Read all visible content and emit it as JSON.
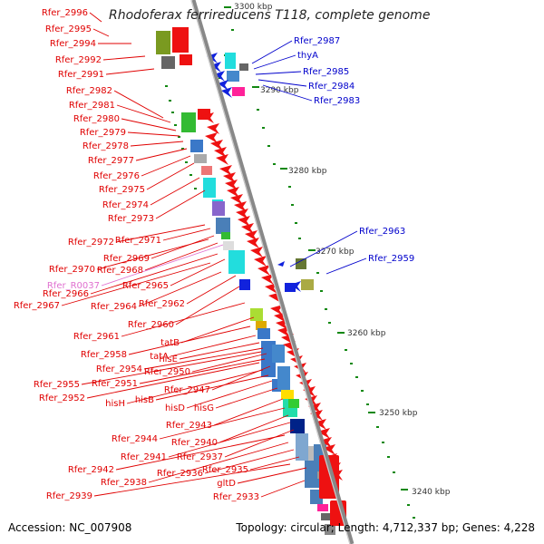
{
  "title": "Rhodoferax ferrireducens T118, complete genome",
  "footer": {
    "accession": "Accession: NC_007908",
    "topology": "Topology: circular; Length: 4,712,337 bp; Genes: 4,228"
  },
  "colors": {
    "reverse_label": "#e00000",
    "forward_label": "#0000cc",
    "rna_label": "#e070d0",
    "backbone": "#888888"
  },
  "ticks": [
    {
      "label": "3300 kbp",
      "pos": 3300
    },
    {
      "label": "3290 kbp",
      "pos": 3290
    },
    {
      "label": "3280 kbp",
      "pos": 3280
    },
    {
      "label": "3270 kbp",
      "pos": 3270
    },
    {
      "label": "3260 kbp",
      "pos": 3260
    },
    {
      "label": "3250 kbp",
      "pos": 3250
    },
    {
      "label": "3240 kbp",
      "pos": 3240
    }
  ],
  "forward_genes": [
    "Rfer_2987",
    "thyA",
    "Rfer_2985",
    "Rfer_2984",
    "Rfer_2983",
    "Rfer_2963",
    "Rfer_2959"
  ],
  "reverse_genes": [
    "Rfer_2996",
    "Rfer_2995",
    "Rfer_2994",
    "Rfer_2992",
    "Rfer_2991",
    "Rfer_2982",
    "Rfer_2981",
    "Rfer_2980",
    "Rfer_2979",
    "Rfer_2978",
    "Rfer_2977",
    "Rfer_2976",
    "Rfer_2975",
    "Rfer_2974",
    "Rfer_2973",
    "Rfer_2972",
    "Rfer_2971",
    "Rfer_2969",
    "Rfer_2970",
    "Rfer_2968",
    "Rfer_2965",
    "Rfer_2966",
    "Rfer_2967",
    "Rfer_2964",
    "Rfer_2962",
    "Rfer_2960",
    "Rfer_2961",
    "tatB",
    "Rfer_2958",
    "tatA",
    "hisE",
    "Rfer_2954",
    "Rfer_2950",
    "Rfer_2955",
    "Rfer_2951",
    "Rfer_2952",
    "Rfer_2947",
    "hisH",
    "hisB",
    "hisD",
    "hisG",
    "Rfer_2943",
    "Rfer_2944",
    "Rfer_2940",
    "Rfer_2941",
    "Rfer_2937",
    "Rfer_2942",
    "Rfer_2938",
    "Rfer_2936",
    "Rfer_2935",
    "Rfer_2939",
    "gltD",
    "Rfer_2933"
  ],
  "rna_genes": [
    "Rfer_R0037"
  ]
}
